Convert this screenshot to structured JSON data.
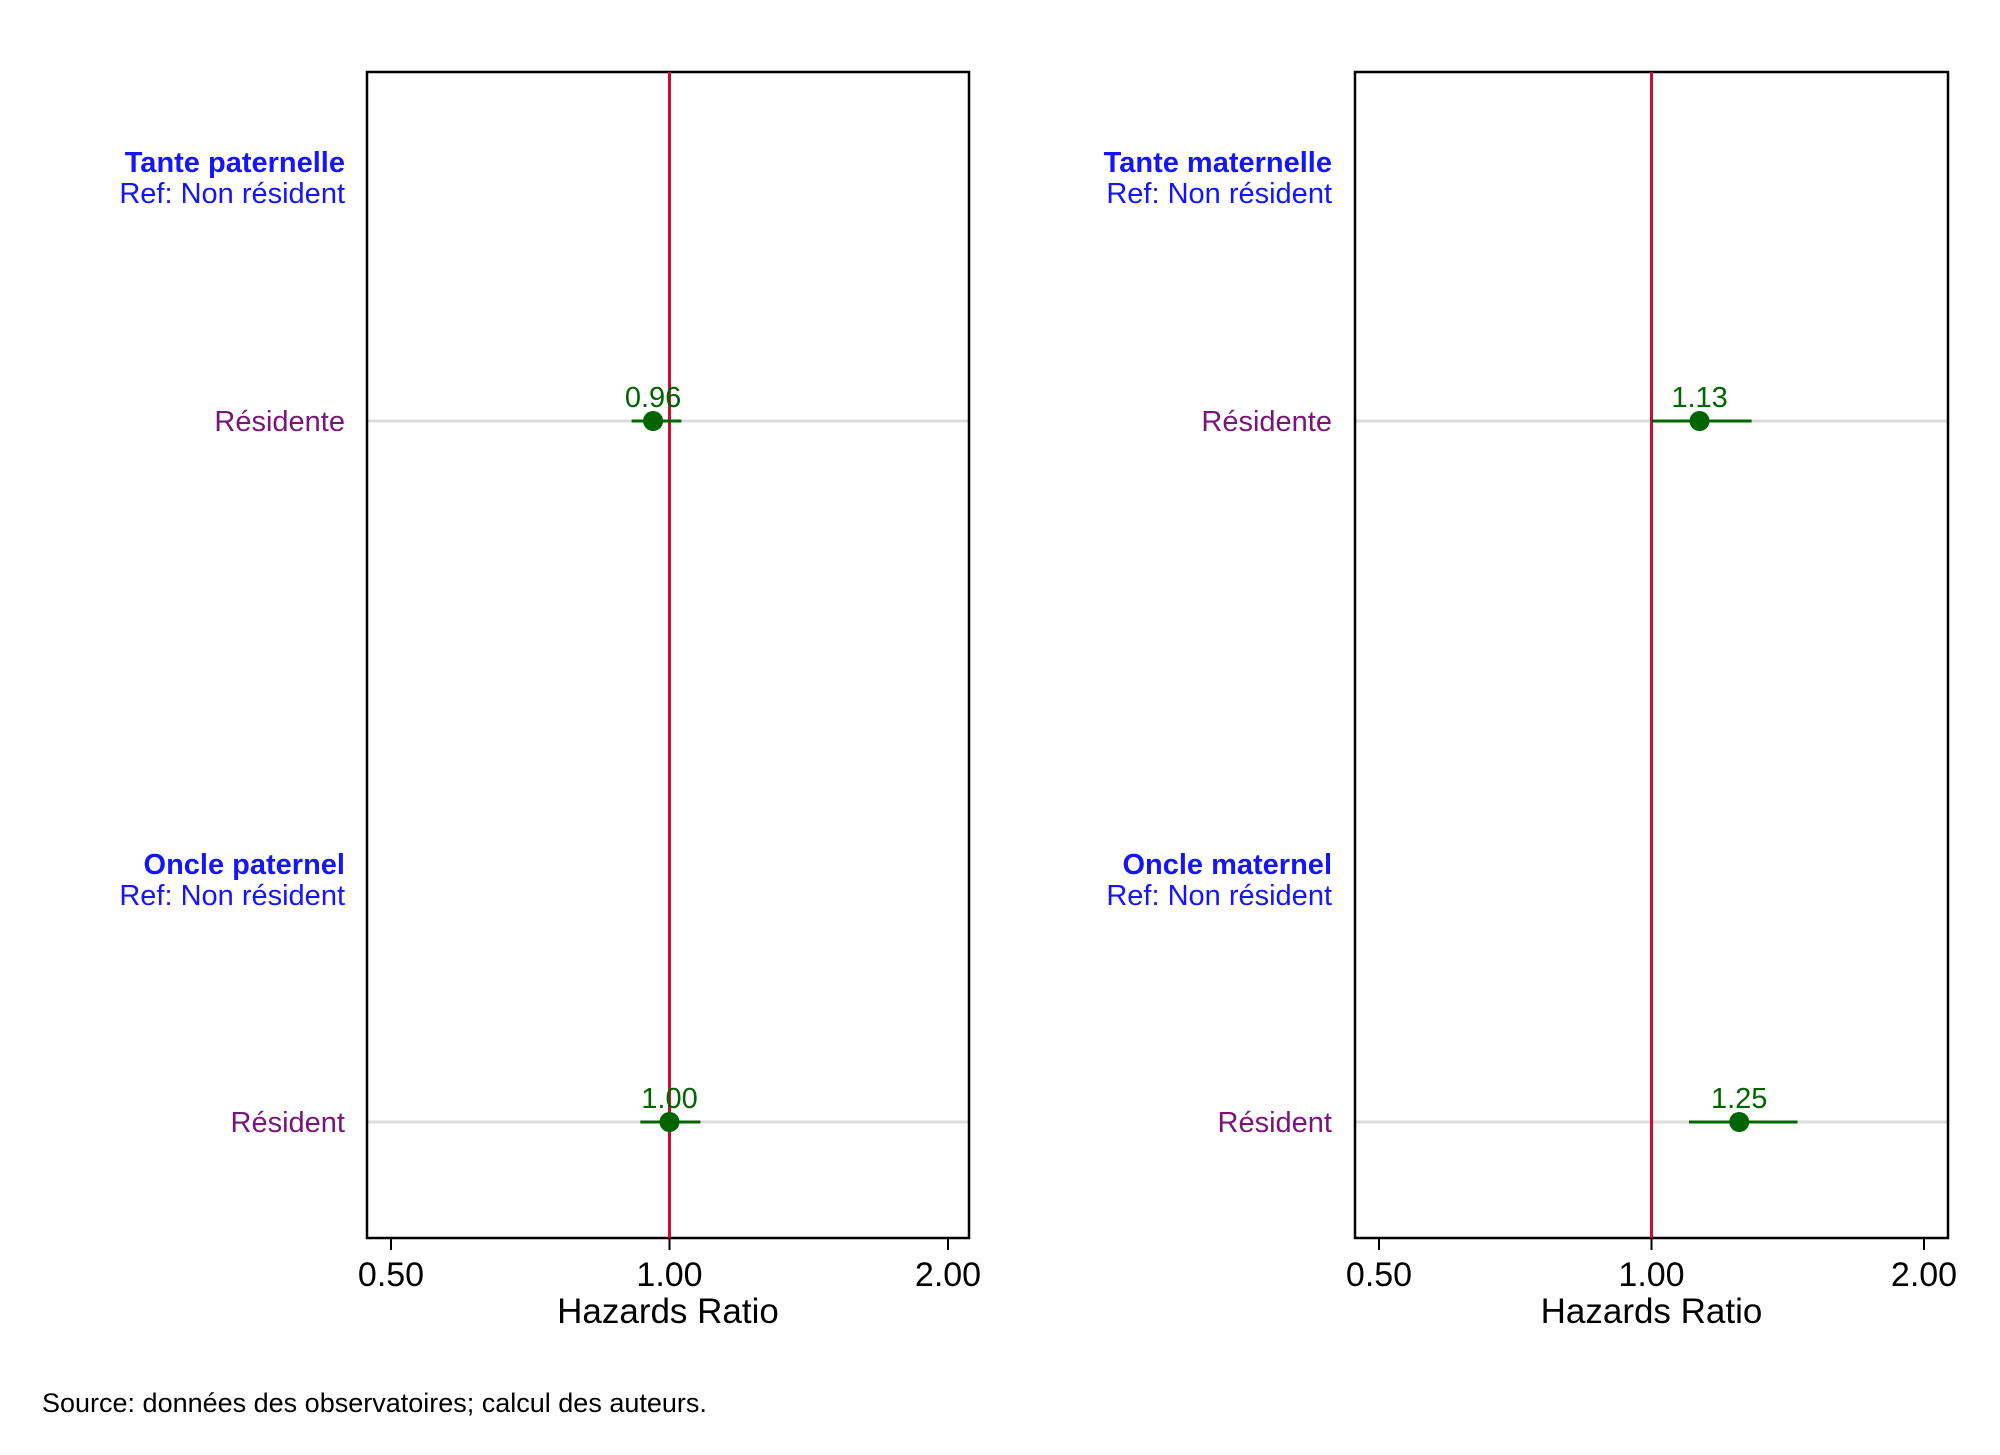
{
  "chart_data": [
    {
      "type": "scatter",
      "scale": "log",
      "xlabel": "Hazards Ratio",
      "x_ticks": [
        0.5,
        1.0,
        2.0
      ],
      "x_tick_labels": [
        "0.50",
        "1.00",
        "2.00"
      ],
      "xlim": [
        0.48,
        2.1
      ],
      "reference_line": 1.0,
      "groups": [
        {
          "title": "Tante paternelle",
          "ref": "Ref: Non résident",
          "rows": [
            {
              "label": "Résidente",
              "estimate": 0.96,
              "ci": [
                0.91,
                1.03
              ],
              "value_label": "0.96"
            }
          ]
        },
        {
          "title": "Oncle paternel",
          "ref": "Ref: Non résident",
          "rows": [
            {
              "label": "Résident",
              "estimate": 1.0,
              "ci": [
                0.93,
                1.08
              ],
              "value_label": "1.00"
            }
          ]
        }
      ]
    },
    {
      "type": "scatter",
      "scale": "log",
      "xlabel": "Hazards Ratio",
      "x_ticks": [
        0.5,
        1.0,
        2.0
      ],
      "x_tick_labels": [
        "0.50",
        "1.00",
        "2.00"
      ],
      "xlim": [
        0.48,
        2.1
      ],
      "reference_line": 1.0,
      "groups": [
        {
          "title": "Tante maternelle",
          "ref": "Ref: Non résident",
          "rows": [
            {
              "label": "Résidente",
              "estimate": 1.13,
              "ci": [
                1.0,
                1.29
              ],
              "value_label": "1.13"
            }
          ]
        },
        {
          "title": "Oncle maternel",
          "ref": "Ref: Non résident",
          "rows": [
            {
              "label": "Résident",
              "estimate": 1.25,
              "ci": [
                1.1,
                1.45
              ],
              "value_label": "1.25"
            }
          ]
        }
      ]
    }
  ],
  "colors": {
    "group_title": "#1414ff",
    "row_label": "#7a147a",
    "point": "#006400",
    "reference_line": "#c8102e",
    "row_line": "#dcdcdc",
    "frame": "#000000"
  },
  "source": "Source: données des observatoires; calcul des auteurs."
}
